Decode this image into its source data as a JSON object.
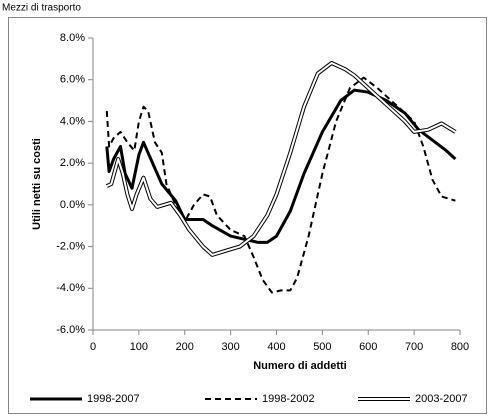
{
  "chart_data": {
    "type": "line",
    "title": "Mezzi di trasporto",
    "x_label": "Numero di addetti",
    "y_label": "Utili netti su costi",
    "xlim": [
      0,
      800
    ],
    "xticks": [
      0,
      100,
      200,
      300,
      400,
      500,
      600,
      700,
      800
    ],
    "ylim": [
      -6,
      8
    ],
    "yticks": [
      {
        "value": -6,
        "label": "-6.0%"
      },
      {
        "value": -4,
        "label": "-4.0%"
      },
      {
        "value": -2,
        "label": "-2.0%"
      },
      {
        "value": 0,
        "label": "0.0%"
      },
      {
        "value": 2,
        "label": "2.0%"
      },
      {
        "value": 4,
        "label": "4.0%"
      },
      {
        "value": 6,
        "label": "6.0%"
      },
      {
        "value": 8,
        "label": "8.0%"
      }
    ],
    "series": [
      {
        "name": "1998-2007",
        "color": "#000000",
        "style": "solid",
        "x": [
          30,
          35,
          45,
          60,
          70,
          85,
          100,
          110,
          130,
          150,
          180,
          200,
          240,
          260,
          300,
          340,
          360,
          380,
          400,
          430,
          460,
          500,
          540,
          570,
          600,
          640,
          680,
          710,
          740,
          770,
          790
        ],
        "values": [
          2.8,
          1.6,
          2.2,
          2.8,
          1.5,
          0.8,
          2.4,
          3.0,
          2.0,
          1.0,
          0.2,
          -0.7,
          -0.7,
          -1.0,
          -1.5,
          -1.7,
          -1.8,
          -1.8,
          -1.5,
          -0.3,
          1.5,
          3.5,
          5.0,
          5.5,
          5.4,
          5.0,
          4.4,
          3.6,
          3.1,
          2.6,
          2.2
        ]
      },
      {
        "name": "1998-2002",
        "color": "#000000",
        "style": "dashed",
        "x": [
          30,
          35,
          45,
          60,
          75,
          90,
          100,
          110,
          120,
          135,
          150,
          160,
          180,
          200,
          220,
          240,
          255,
          270,
          300,
          330,
          350,
          370,
          390,
          410,
          430,
          445,
          470,
          500,
          530,
          560,
          590,
          620,
          660,
          700,
          720,
          740,
          760,
          790
        ],
        "values": [
          4.5,
          2.8,
          3.2,
          3.5,
          3.0,
          2.6,
          4.0,
          4.7,
          4.5,
          3.0,
          2.5,
          1.0,
          0.0,
          -0.8,
          0.0,
          0.5,
          0.4,
          -0.5,
          -1.2,
          -1.5,
          -2.5,
          -3.6,
          -4.2,
          -4.1,
          -4.1,
          -3.5,
          -1.5,
          1.5,
          4.0,
          5.6,
          6.1,
          5.6,
          4.8,
          4.0,
          2.8,
          1.2,
          0.4,
          0.2
        ]
      },
      {
        "name": "2003-2007",
        "color": "#000000",
        "style": "double",
        "x": [
          30,
          40,
          55,
          65,
          75,
          85,
          95,
          110,
          125,
          140,
          170,
          190,
          210,
          240,
          260,
          290,
          320,
          350,
          380,
          400,
          430,
          460,
          490,
          520,
          550,
          570,
          600,
          640,
          680,
          700,
          730,
          760,
          790
        ],
        "values": [
          0.9,
          1.0,
          2.2,
          1.5,
          0.5,
          -0.2,
          0.5,
          1.3,
          0.3,
          -0.1,
          0.1,
          -0.5,
          -1.2,
          -2.0,
          -2.4,
          -2.2,
          -2.0,
          -1.5,
          -0.5,
          0.5,
          2.5,
          4.7,
          6.3,
          6.8,
          6.5,
          6.2,
          5.6,
          4.8,
          4.0,
          3.5,
          3.6,
          3.9,
          3.5
        ]
      }
    ]
  }
}
